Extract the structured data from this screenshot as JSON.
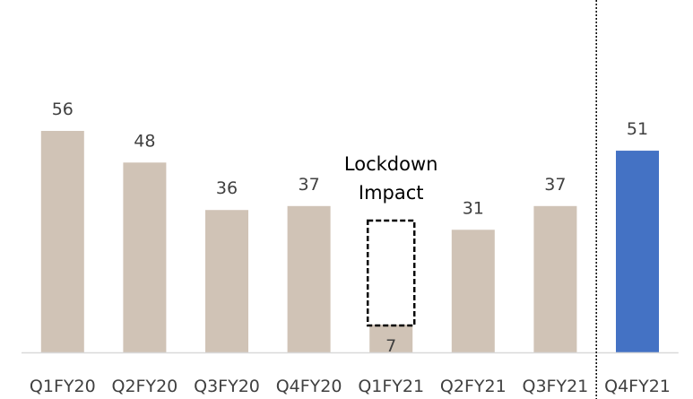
{
  "chart_data": {
    "type": "bar",
    "categories": [
      "Q1FY20",
      "Q2FY20",
      "Q3FY20",
      "Q4FY20",
      "Q1FY21",
      "Q2FY21",
      "Q3FY21",
      "Q4FY21"
    ],
    "values": [
      56,
      48,
      36,
      37,
      7,
      31,
      37,
      51
    ],
    "value_labels": [
      "56",
      "48",
      "36",
      "37",
      "7",
      "31",
      "37",
      "51"
    ],
    "title": "",
    "xlabel": "",
    "ylabel": "",
    "ylim": [
      0,
      75
    ],
    "grid": false,
    "legend": "none",
    "colors": {
      "default": "#d0c3b6",
      "highlight": "#4472c4",
      "highlight_index": 7,
      "axis": "#d9d9d9",
      "text": "#404040"
    },
    "annotations": {
      "lockdown_line1": "Lockdown",
      "lockdown_line2": "Impact",
      "lockdown_category": "Q1FY21"
    },
    "divider_before_category": "Q4FY21"
  }
}
